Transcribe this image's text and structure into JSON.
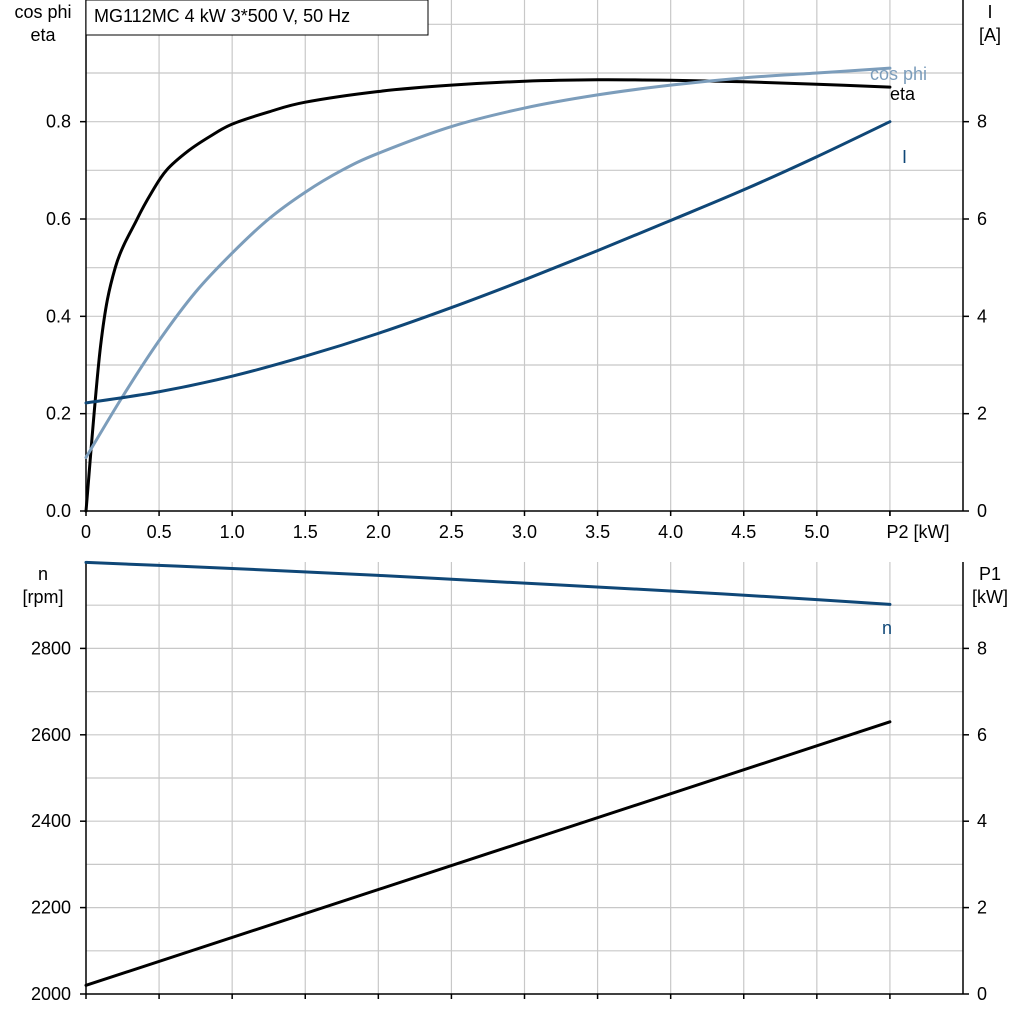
{
  "title": "MG112MC   4 kW   3*500 V, 50 Hz",
  "colors": {
    "eta": "#000000",
    "cosphi": "#7c9dbb",
    "current": "#0f4777",
    "speed": "#0f4777",
    "p1": "#000000",
    "grid": "#c8c8c8"
  },
  "chart_data": [
    {
      "type": "line",
      "xlabel": "P2 [kW]",
      "x_ticks": [
        "0",
        "0.5",
        "1.0",
        "1.5",
        "2.0",
        "2.5",
        "3.0",
        "3.5",
        "4.0",
        "4.5",
        "5.0"
      ],
      "xlim": [
        0,
        6
      ],
      "ylabel_left_1": "cos phi",
      "ylabel_left_2": "eta",
      "ylim_left": [
        0,
        1.05
      ],
      "y_ticks_left": [
        "0.0",
        "0.2",
        "0.4",
        "0.6",
        "0.8"
      ],
      "ylabel_right_1": "I",
      "ylabel_right_2": "[A]",
      "ylim_right": [
        0,
        10.5
      ],
      "y_ticks_right": [
        "0",
        "2",
        "4",
        "6",
        "8"
      ],
      "grid": true,
      "series": [
        {
          "name": "eta",
          "axis": "left",
          "x": [
            0,
            0.1,
            0.2,
            0.35,
            0.45,
            0.55,
            0.7,
            0.85,
            1.0,
            1.25,
            1.5,
            2.0,
            2.5,
            3.0,
            3.5,
            4.0,
            4.5,
            5.0,
            5.5
          ],
          "y": [
            0,
            0.34,
            0.5,
            0.6,
            0.655,
            0.7,
            0.74,
            0.77,
            0.795,
            0.82,
            0.84,
            0.862,
            0.875,
            0.883,
            0.886,
            0.885,
            0.882,
            0.877,
            0.871
          ]
        },
        {
          "name": "cos phi",
          "axis": "left",
          "x": [
            0,
            0.25,
            0.5,
            0.75,
            1.0,
            1.25,
            1.5,
            1.75,
            2.0,
            2.5,
            3.0,
            3.5,
            4.0,
            4.5,
            5.0,
            5.5
          ],
          "y": [
            0.11,
            0.235,
            0.35,
            0.45,
            0.53,
            0.6,
            0.655,
            0.7,
            0.735,
            0.79,
            0.828,
            0.855,
            0.875,
            0.89,
            0.9,
            0.91
          ]
        },
        {
          "name": "I",
          "axis": "right",
          "x": [
            0,
            0.5,
            1.0,
            1.5,
            2.0,
            2.5,
            3.0,
            3.5,
            4.0,
            4.5,
            5.0,
            5.5
          ],
          "y": [
            2.22,
            2.45,
            2.77,
            3.18,
            3.65,
            4.18,
            4.75,
            5.35,
            5.97,
            6.6,
            7.28,
            8.0
          ]
        }
      ]
    },
    {
      "type": "line",
      "xlim": [
        0,
        6
      ],
      "ylabel_left_1": "n",
      "ylabel_left_2": "[rpm]",
      "ylim_left": [
        2000,
        3000
      ],
      "y_ticks_left": [
        "2000",
        "2200",
        "2400",
        "2600",
        "2800"
      ],
      "ylabel_right_1": "P1",
      "ylabel_right_2": "[kW]",
      "ylim_right": [
        0,
        10
      ],
      "y_ticks_right": [
        "0",
        "2",
        "4",
        "6",
        "8"
      ],
      "grid": true,
      "series": [
        {
          "name": "n",
          "axis": "left",
          "x": [
            0,
            1.0,
            2.0,
            3.0,
            4.0,
            5.0,
            5.5
          ],
          "y": [
            2999,
            2985,
            2969,
            2951,
            2933,
            2913,
            2902
          ]
        },
        {
          "name": "",
          "axis": "right",
          "x": [
            0,
            5.5
          ],
          "y": [
            0.2,
            6.3
          ]
        }
      ]
    }
  ]
}
